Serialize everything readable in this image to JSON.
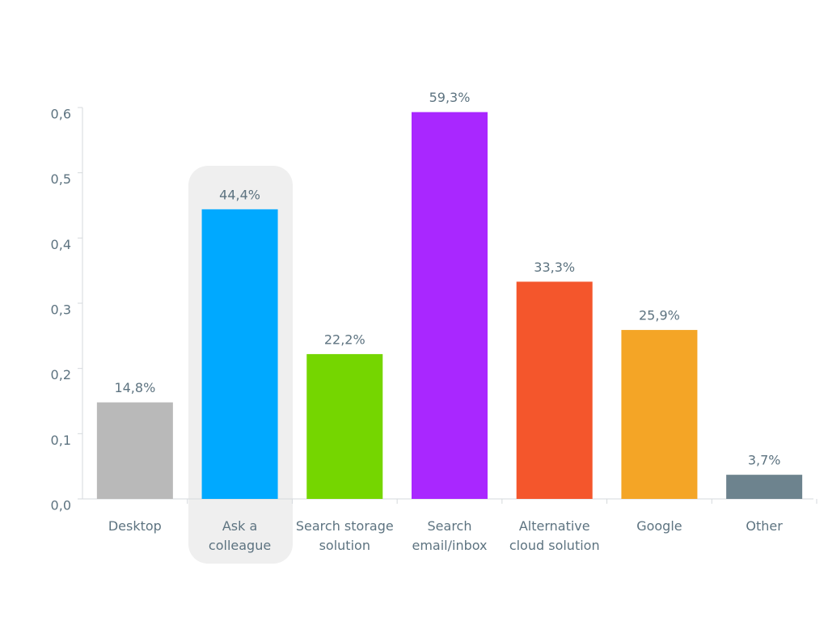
{
  "chart_data": {
    "type": "bar",
    "categories": [
      "Desktop",
      "Ask a\ncolleague",
      "Search storage\nsolution",
      "Search\nemail/inbox",
      "Alternative\ncloud solution",
      "Google",
      "Other"
    ],
    "values": [
      0.148,
      0.444,
      0.222,
      0.593,
      0.333,
      0.259,
      0.037
    ],
    "value_labels": [
      "14,8%",
      "44,4%",
      "22,2%",
      "59,3%",
      "33,3%",
      "25,9%",
      "3,7%"
    ],
    "colors": [
      "#b9b9b9",
      "#00a9ff",
      "#75d600",
      "#a927ff",
      "#f4562c",
      "#f4a526",
      "#6d838e"
    ],
    "ylim": [
      0,
      0.6
    ],
    "yticks": [
      {
        "value": 0,
        "label": "0,0"
      },
      {
        "value": 0.1,
        "label": "0,1"
      },
      {
        "value": 0.2,
        "label": "0,2"
      },
      {
        "value": 0.3,
        "label": "0,3"
      },
      {
        "value": 0.4,
        "label": "0,4"
      },
      {
        "value": 0.5,
        "label": "0,5"
      },
      {
        "value": 0.6,
        "label": "0,6"
      }
    ]
  }
}
